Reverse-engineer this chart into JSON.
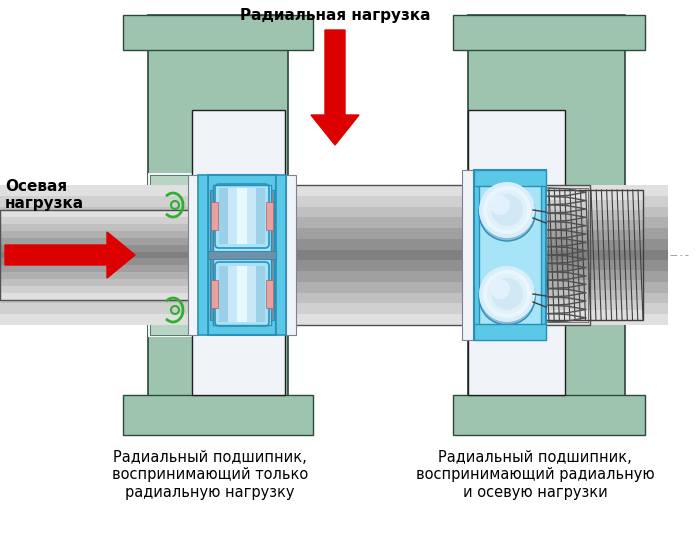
{
  "background_color": "#ffffff",
  "radial_load_label": "Радиальная нагрузка",
  "axial_load_label": "Осевая\nнагрузка",
  "left_bearing_label": "Радиальный подшипник,\nвоспринимающий только\nрадиальную нагрузку",
  "right_bearing_label": "Радиальный подшипник,\nвоспринимающий радиальную\nи осевую нагрузки",
  "arrow_red": "#dd0000",
  "text_color": "#000000",
  "label_fontsize": 10.5,
  "housing_fill": "#9ec4b0",
  "housing_edge": "#2a4a38",
  "housing_light": "#b8d4c4",
  "bearing_blue": "#5bc8e8",
  "bearing_blue_dark": "#2a90b8",
  "bearing_blue_light": "#a8e4f8",
  "ball_blue": "#8ab8d8",
  "ball_light": "#c8e4f8",
  "white_fill": "#f0f4f8",
  "shaft_colors": [
    "#e0e0e0",
    "#d0d0d0",
    "#c0c0c0",
    "#b0b0b0",
    "#a0a0a0",
    "#909090",
    "#808080",
    "#909090",
    "#a0a0a0",
    "#b0b0b0",
    "#c0c0c0",
    "#d0d0d0",
    "#e0e0e0"
  ],
  "pink_seal": "#e8a0a0",
  "green_seal": "#30b030",
  "spring_color": "#505050",
  "dark_edge": "#202020",
  "gray_edge": "#505050",
  "needle_color": "#303030"
}
